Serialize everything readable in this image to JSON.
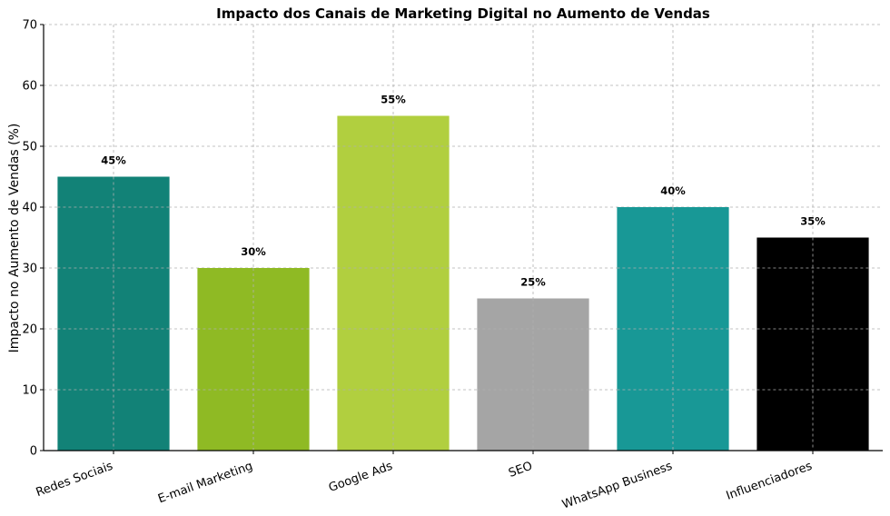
{
  "chart_data": {
    "type": "bar",
    "title": "Impacto dos Canais de Marketing Digital no Aumento de Vendas",
    "xlabel": "",
    "ylabel": "Impacto no Aumento de Vendas (%)",
    "categories": [
      "Redes Sociais",
      "E-mail Marketing",
      "Google Ads",
      "SEO",
      "WhatsApp Business",
      "Influenciadores"
    ],
    "values": [
      45,
      30,
      55,
      25,
      40,
      35
    ],
    "data_labels": [
      "45%",
      "30%",
      "55%",
      "25%",
      "40%",
      "35%"
    ],
    "colors": [
      "#128277",
      "#8FBA24",
      "#B1CF3F",
      "#A5A5A5",
      "#189896",
      "#000000"
    ],
    "ylim": [
      0,
      70
    ],
    "yticks": [
      0,
      10,
      20,
      30,
      40,
      50,
      60,
      70
    ],
    "grid": true,
    "legend": "none"
  }
}
